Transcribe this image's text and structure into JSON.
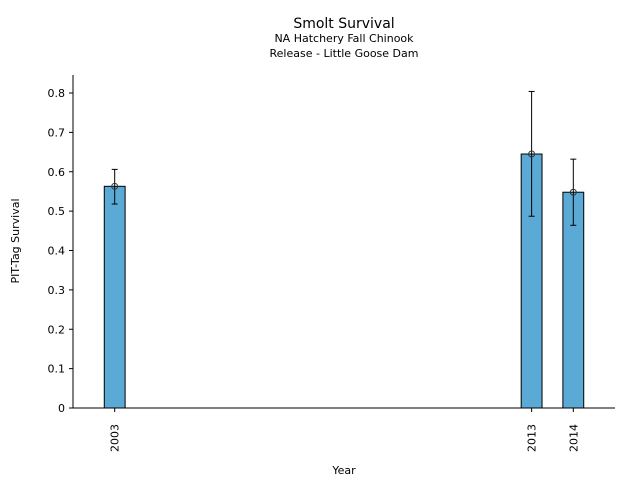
{
  "chart_data": {
    "type": "bar",
    "title": "Smolt Survival",
    "subtitle_lines": [
      "NA Hatchery Fall Chinook",
      "Release - Little Goose Dam"
    ],
    "xlabel": "Year",
    "ylabel": "PIT-Tag Survival",
    "categories": [
      "2003",
      "2013",
      "2014"
    ],
    "x": [
      2003,
      2013,
      2014
    ],
    "values": [
      0.563,
      0.645,
      0.548
    ],
    "error_low": [
      0.518,
      0.487,
      0.464
    ],
    "error_high": [
      0.606,
      0.804,
      0.632
    ],
    "xlim": [
      2002,
      2015
    ],
    "ylim": [
      0,
      0.85
    ],
    "yticks": [
      "0",
      "0.1",
      "0.2",
      "0.3",
      "0.4",
      "0.5",
      "0.6",
      "0.7",
      "0.8"
    ],
    "ytick_values": [
      0,
      0.1,
      0.2,
      0.3,
      0.4,
      0.5,
      0.6,
      0.7,
      0.8
    ],
    "grid": false,
    "bar_color": "#5aaad5"
  }
}
